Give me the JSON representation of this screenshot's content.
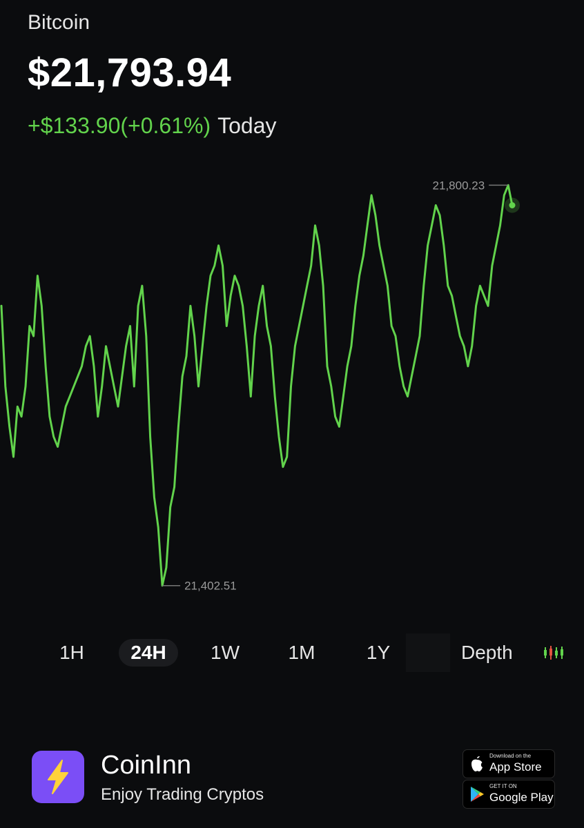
{
  "asset": {
    "name": "Bitcoin",
    "price": "$21,793.94",
    "change_value": "+$133.90(+0.61%)",
    "change_period": "Today"
  },
  "chart_data": {
    "type": "line",
    "high_label": "21,800.23",
    "low_label": "21,402.51",
    "high": 21800.23,
    "low": 21402.51,
    "line_color": "#62d34c",
    "values": [
      21680,
      21600,
      21560,
      21530,
      21580,
      21570,
      21600,
      21660,
      21650,
      21710,
      21680,
      21620,
      21570,
      21550,
      21540,
      21560,
      21580,
      21590,
      21600,
      21610,
      21620,
      21640,
      21650,
      21620,
      21570,
      21600,
      21640,
      21620,
      21600,
      21580,
      21610,
      21640,
      21660,
      21600,
      21680,
      21700,
      21650,
      21550,
      21490,
      21460,
      21402,
      21420,
      21480,
      21500,
      21560,
      21610,
      21630,
      21680,
      21650,
      21600,
      21640,
      21680,
      21710,
      21720,
      21740,
      21720,
      21660,
      21690,
      21710,
      21700,
      21680,
      21640,
      21590,
      21650,
      21680,
      21700,
      21660,
      21640,
      21590,
      21550,
      21520,
      21530,
      21600,
      21640,
      21660,
      21680,
      21700,
      21720,
      21760,
      21740,
      21700,
      21620,
      21600,
      21570,
      21560,
      21590,
      21620,
      21640,
      21680,
      21710,
      21730,
      21760,
      21790,
      21770,
      21740,
      21720,
      21700,
      21660,
      21650,
      21620,
      21600,
      21590,
      21610,
      21630,
      21650,
      21700,
      21740,
      21760,
      21780,
      21770,
      21740,
      21700,
      21690,
      21670,
      21650,
      21640,
      21620,
      21640,
      21680,
      21700,
      21690,
      21680,
      21720,
      21740,
      21760,
      21790,
      21800,
      21780
    ]
  },
  "range_tabs": [
    {
      "label": "1H"
    },
    {
      "label": "24H"
    },
    {
      "label": "1W"
    },
    {
      "label": "1M"
    },
    {
      "label": "1Y"
    }
  ],
  "depth_label": "Depth",
  "icons": {
    "candle": "candlestick-icon",
    "logo": "lightning-bolt-icon",
    "apple": "apple-icon",
    "play": "google-play-icon"
  },
  "footer": {
    "app_name": "CoinInn",
    "tagline": "Enjoy Trading Cryptos",
    "app_store_small": "Download on the",
    "app_store_big": "App Store",
    "google_small": "GET IT ON",
    "google_big": "Google Play"
  },
  "colors": {
    "background": "#0b0c0e",
    "accent_green": "#62d34c",
    "logo_purple": "#7b4ef6",
    "logo_bolt": "#ffd23a"
  }
}
